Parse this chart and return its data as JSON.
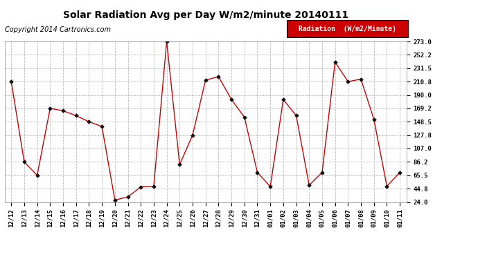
{
  "title": "Solar Radiation Avg per Day W/m2/minute 20140111",
  "copyright": "Copyright 2014 Cartronics.com",
  "legend_label": "Radiation  (W/m2/Minute)",
  "x_labels": [
    "12/12",
    "12/13",
    "12/14",
    "12/15",
    "12/16",
    "12/17",
    "12/18",
    "12/19",
    "12/20",
    "12/21",
    "12/22",
    "12/23",
    "12/24",
    "12/25",
    "12/26",
    "12/27",
    "12/28",
    "12/29",
    "12/30",
    "12/31",
    "01/01",
    "01/02",
    "01/03",
    "01/04",
    "01/05",
    "01/06",
    "01/07",
    "01/08",
    "01/09",
    "01/10",
    "01/11"
  ],
  "y_values": [
    210.8,
    86.2,
    65.5,
    169.2,
    165.5,
    158.0,
    148.5,
    141.0,
    27.0,
    32.0,
    47.5,
    48.5,
    273.0,
    82.0,
    127.8,
    213.0,
    218.5,
    183.0,
    155.5,
    70.0,
    48.0,
    183.0,
    158.0,
    50.0,
    70.0,
    241.0,
    210.8,
    214.5,
    152.0,
    48.5,
    70.0
  ],
  "line_color": "#cc0000",
  "marker_color": "#111111",
  "bg_color": "#ffffff",
  "grid_color": "#bbbbbb",
  "y_ticks": [
    24.0,
    44.8,
    65.5,
    86.2,
    107.0,
    127.8,
    148.5,
    169.2,
    190.0,
    210.8,
    231.5,
    252.2,
    273.0
  ],
  "ylim_min": 24.0,
  "ylim_max": 273.0,
  "legend_bg": "#cc0000",
  "legend_text_color": "#ffffff",
  "title_fontsize": 10,
  "copyright_fontsize": 7,
  "tick_fontsize": 6.5,
  "legend_fontsize": 7
}
